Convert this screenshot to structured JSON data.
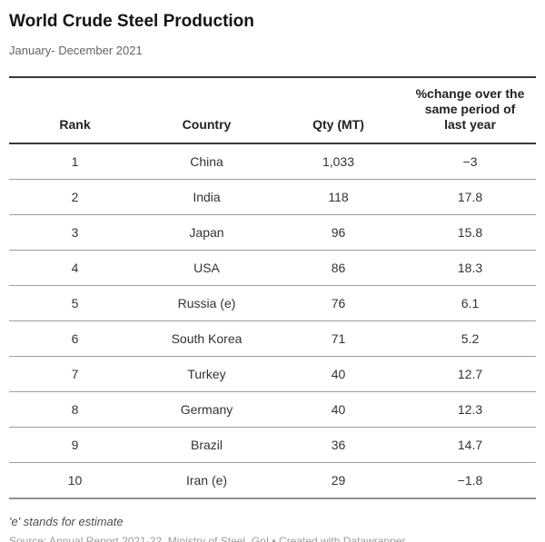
{
  "header": {
    "title": "World Crude Steel Production",
    "subtitle": "January- December 2021"
  },
  "table": {
    "columns": [
      "Rank",
      "Country",
      "Qty (MT)",
      "%change over the same period of last year"
    ],
    "rows": [
      {
        "rank": "1",
        "country": "China",
        "qty": "1,033",
        "change": "−3"
      },
      {
        "rank": "2",
        "country": "India",
        "qty": "118",
        "change": "17.8"
      },
      {
        "rank": "3",
        "country": "Japan",
        "qty": "96",
        "change": "15.8"
      },
      {
        "rank": "4",
        "country": "USA",
        "qty": "86",
        "change": "18.3"
      },
      {
        "rank": "5",
        "country": "Russia (e)",
        "qty": "76",
        "change": "6.1"
      },
      {
        "rank": "6",
        "country": "South Korea",
        "qty": "71",
        "change": "5.2"
      },
      {
        "rank": "7",
        "country": "Turkey",
        "qty": "40",
        "change": "12.7"
      },
      {
        "rank": "8",
        "country": "Germany",
        "qty": "40",
        "change": "12.3"
      },
      {
        "rank": "9",
        "country": "Brazil",
        "qty": "36",
        "change": "14.7"
      },
      {
        "rank": "10",
        "country": "Iran (e)",
        "qty": "29",
        "change": "−1.8"
      }
    ]
  },
  "footer": {
    "footnote": "'e' stands for estimate",
    "source": "Source: Annual Report 2021-22, Ministry of Steel, GoI • Created with Datawrapper"
  },
  "colors": {
    "background": "#ffffff",
    "title_text": "#141414",
    "subtitle_text": "#646464",
    "header_rule": "#383838",
    "row_rule": "#9d9d9d",
    "cell_text": "#333333",
    "source_text": "#9b9b9b"
  },
  "chart_data": {
    "type": "table",
    "title": "World Crude Steel Production",
    "subtitle": "January- December 2021",
    "columns": [
      "Rank",
      "Country",
      "Qty (MT)",
      "%change over the same period of last year"
    ],
    "rows": [
      [
        1,
        "China",
        1033,
        -3
      ],
      [
        2,
        "India",
        118,
        17.8
      ],
      [
        3,
        "Japan",
        96,
        15.8
      ],
      [
        4,
        "USA",
        86,
        18.3
      ],
      [
        5,
        "Russia (e)",
        76,
        6.1
      ],
      [
        6,
        "South Korea",
        71,
        5.2
      ],
      [
        7,
        "Turkey",
        40,
        12.7
      ],
      [
        8,
        "Germany",
        40,
        12.3
      ],
      [
        9,
        "Brazil",
        36,
        14.7
      ],
      [
        10,
        "Iran (e)",
        29,
        -1.8
      ]
    ],
    "footnote": "'e' stands for estimate",
    "source": "Annual Report 2021-22, Ministry of Steel, GoI"
  }
}
